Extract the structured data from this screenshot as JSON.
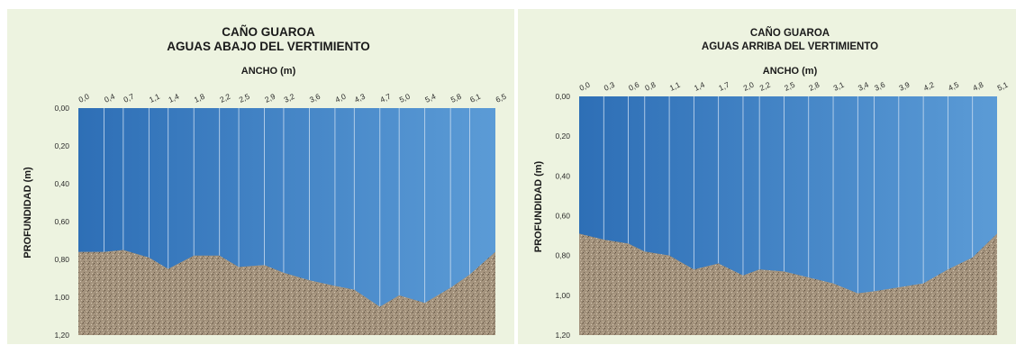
{
  "chart_data": [
    {
      "type": "area",
      "title": "CAÑO GUAROA",
      "subtitle": "AGUAS ABAJO DEL VERTIMIENTO",
      "xlabel": "ANCHO  (m)",
      "ylabel": "PROFUNDIDAD (m)",
      "x_ticks": [
        "0,0",
        "0,4",
        "0,7",
        "1,1",
        "1,4",
        "1,8",
        "2,2",
        "2,5",
        "2,9",
        "3,2",
        "3,6",
        "4,0",
        "4,3",
        "4,7",
        "5,0",
        "5,4",
        "5,8",
        "6,1",
        "6,5"
      ],
      "y_ticks": [
        "0,00",
        "0,20",
        "0,40",
        "0,60",
        "0,80",
        "1,00",
        "1,20"
      ],
      "xlim": [
        0,
        6.5
      ],
      "ylim": [
        0,
        1.2
      ],
      "y_inverted": true,
      "x": [
        0.0,
        0.4,
        0.7,
        1.1,
        1.4,
        1.8,
        2.2,
        2.5,
        2.9,
        3.2,
        3.6,
        4.0,
        4.3,
        4.7,
        5.0,
        5.4,
        5.8,
        6.1,
        6.5
      ],
      "depth": [
        0.76,
        0.76,
        0.75,
        0.79,
        0.85,
        0.78,
        0.78,
        0.84,
        0.83,
        0.87,
        0.91,
        0.94,
        0.96,
        1.05,
        0.99,
        1.03,
        0.95,
        0.88,
        0.76
      ],
      "colors": {
        "water_top": "#2e6fb6",
        "water_bottom": "#5b9bd6",
        "soil": "#a4937d",
        "grid": "#c9dcf0"
      }
    },
    {
      "type": "area",
      "title": "CAÑO GUAROA",
      "subtitle": "AGUAS ARRIBA DEL VERTIMIENTO",
      "xlabel": "ANCHO  (m)",
      "ylabel": "PROFUNDIDAD (m)",
      "x_ticks": [
        "0,0",
        "0,3",
        "0,6",
        "0,8",
        "1,1",
        "1,4",
        "1,7",
        "2,0",
        "2,2",
        "2,5",
        "2,8",
        "3,1",
        "3,4",
        "3,6",
        "3,9",
        "4,2",
        "4,5",
        "4,8",
        "5,1"
      ],
      "y_ticks": [
        "0,00",
        "0,20",
        "0,40",
        "0,60",
        "0,80",
        "1,00",
        "1,20"
      ],
      "xlim": [
        0,
        5.1
      ],
      "ylim": [
        0,
        1.2
      ],
      "y_inverted": true,
      "x": [
        0.0,
        0.3,
        0.6,
        0.8,
        1.1,
        1.4,
        1.7,
        2.0,
        2.2,
        2.5,
        2.8,
        3.1,
        3.4,
        3.6,
        3.9,
        4.2,
        4.5,
        4.8,
        5.1
      ],
      "depth": [
        0.69,
        0.72,
        0.74,
        0.78,
        0.8,
        0.87,
        0.84,
        0.9,
        0.87,
        0.88,
        0.91,
        0.94,
        0.99,
        0.98,
        0.96,
        0.94,
        0.87,
        0.81,
        0.69
      ],
      "colors": {
        "water_top": "#2e6fb6",
        "water_bottom": "#5b9bd6",
        "soil": "#a4937d",
        "grid": "#c9dcf0"
      }
    }
  ]
}
